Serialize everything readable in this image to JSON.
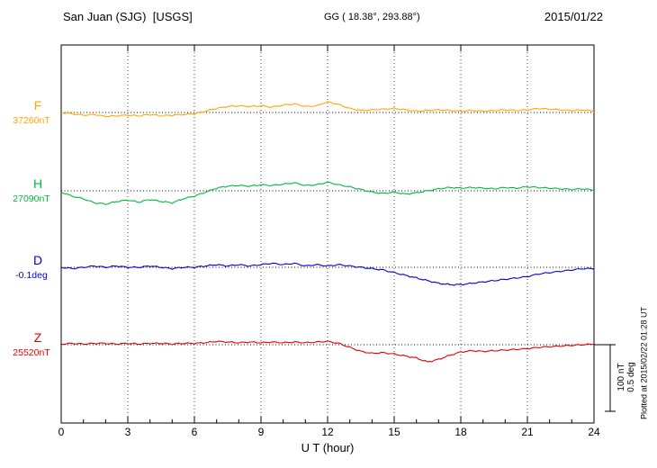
{
  "header": {
    "station_title": "San Juan (SJG)  [USGS]",
    "gg_coords": "GG ( 18.38°, 293.88°)",
    "date": "2015/01/22"
  },
  "x_axis_title": "U T (hour)",
  "scalebar": {
    "nt_label": "100 nT",
    "deg_label": "0.5 deg"
  },
  "plotted_at": "Plotted at 2015/02/22 01:28 UT",
  "chart_data": {
    "type": "line",
    "title": "San Juan (SJG)  [USGS]",
    "date": "2015/01/22",
    "x": {
      "label": "U T (hour)",
      "min": 0,
      "max": 24,
      "tick_hours": [
        0,
        3,
        6,
        9,
        12,
        15,
        18,
        21,
        24
      ],
      "sample_step_hours": 0.5
    },
    "scale_bar": {
      "nT": 100,
      "deg": 0.5
    },
    "series": [
      {
        "id": "F",
        "label": "F",
        "value_label": "37260nT",
        "base_value": 37260,
        "unit": "nT",
        "color": "#FFA500",
        "values": [
          0,
          -2,
          -4,
          -3,
          -6,
          -5,
          -4,
          -5,
          -3,
          -5,
          -4,
          -3,
          -2,
          2,
          6,
          9,
          10,
          9,
          10,
          8,
          11,
          13,
          9,
          10,
          16,
          12,
          6,
          3,
          4,
          5,
          6,
          4,
          2,
          3,
          4,
          3,
          2,
          3,
          2,
          3,
          4,
          3,
          4,
          6,
          5,
          4,
          3,
          4,
          2
        ]
      },
      {
        "id": "H",
        "label": "H",
        "value_label": "27090nT",
        "base_value": 27090,
        "unit": "nT",
        "color": "#00B840",
        "values": [
          -2,
          -8,
          -12,
          -18,
          -20,
          -16,
          -14,
          -17,
          -13,
          -16,
          -18,
          -12,
          -8,
          -2,
          4,
          7,
          8,
          7,
          9,
          8,
          10,
          12,
          8,
          9,
          13,
          9,
          6,
          2,
          -2,
          -4,
          -2,
          -5,
          -3,
          0,
          3,
          5,
          4,
          5,
          4,
          3,
          5,
          4,
          6,
          5,
          4,
          3,
          2,
          3,
          1
        ]
      },
      {
        "id": "D",
        "label": "D",
        "value_label": "-0.1deg",
        "base_value": -0.1,
        "unit": "deg",
        "color": "#0000CC",
        "values": [
          0,
          -0.01,
          0,
          0.01,
          0,
          0.01,
          0,
          0,
          0.01,
          0,
          -0.01,
          0,
          0,
          0.01,
          0.02,
          0.01,
          0.02,
          0.01,
          0.02,
          0.03,
          0.02,
          0.03,
          0.01,
          0.02,
          0.01,
          0.02,
          0.01,
          0,
          -0.01,
          -0.02,
          -0.04,
          -0.06,
          -0.08,
          -0.1,
          -0.12,
          -0.13,
          -0.13,
          -0.12,
          -0.11,
          -0.1,
          -0.09,
          -0.08,
          -0.07,
          -0.05,
          -0.04,
          -0.03,
          -0.02,
          -0.01,
          -0.01
        ]
      },
      {
        "id": "Z",
        "label": "Z",
        "value_label": "25520nT",
        "base_value": 25520,
        "unit": "nT",
        "color": "#DD0000",
        "values": [
          1,
          2,
          1,
          2,
          2,
          1,
          2,
          1,
          2,
          2,
          1,
          2,
          2,
          3,
          5,
          4,
          3,
          4,
          3,
          4,
          3,
          4,
          3,
          4,
          5,
          2,
          -4,
          -10,
          -13,
          -12,
          -14,
          -17,
          -20,
          -26,
          -22,
          -16,
          -11,
          -9,
          -10,
          -9,
          -8,
          -7,
          -6,
          -4,
          -3,
          -2,
          -1,
          0,
          1
        ]
      }
    ]
  }
}
